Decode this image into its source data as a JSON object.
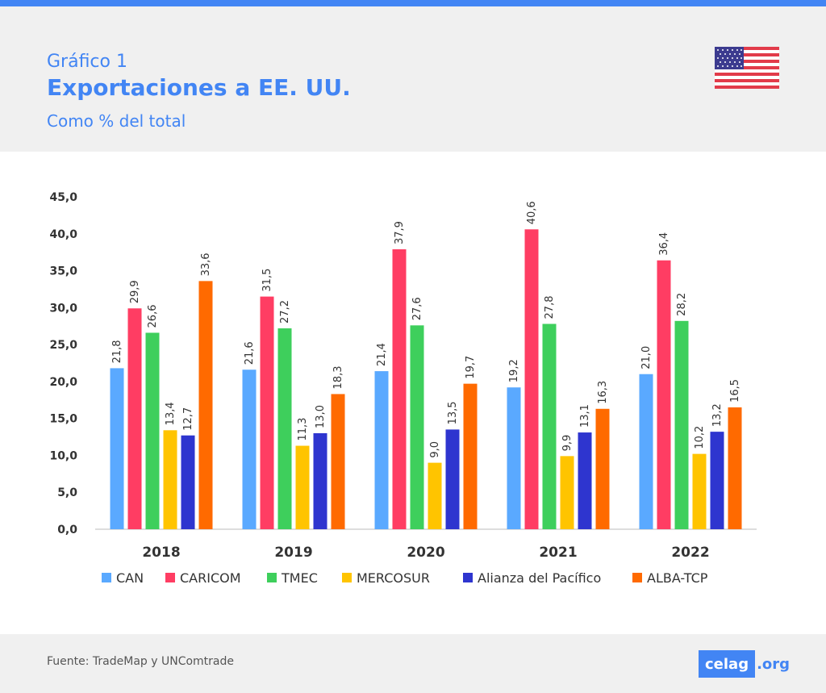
{
  "header": {
    "label": "Gráfico 1",
    "title": "Exportaciones a EE. UU.",
    "subtitle": "Como % del total"
  },
  "flag_icon": "us-flag-icon",
  "footer": {
    "source": "Fuente: TradeMap y UNComtrade",
    "brand_main": "celag",
    "brand_ext": ".org"
  },
  "chart_data": {
    "type": "bar",
    "title": "Exportaciones a EE. UU.",
    "categories": [
      "2018",
      "2019",
      "2020",
      "2021",
      "2022"
    ],
    "ylim": [
      0,
      45
    ],
    "yticks": [
      "0,0",
      "5,0",
      "10,0",
      "15,0",
      "20,0",
      "25,0",
      "30,0",
      "35,0",
      "40,0",
      "45,0"
    ],
    "grid": false,
    "legend_position": "bottom",
    "series": [
      {
        "name": "CAN",
        "color": "#5aa9ff",
        "values": [
          21.8,
          21.6,
          21.4,
          19.2,
          21.0
        ],
        "labels": [
          "21,8",
          "21,6",
          "21,4",
          "19,2",
          "21,0"
        ]
      },
      {
        "name": "CARICOM",
        "color": "#ff3d63",
        "values": [
          29.9,
          31.5,
          37.9,
          40.6,
          36.4
        ],
        "labels": [
          "29,9",
          "31,5",
          "37,9",
          "40,6",
          "36,4"
        ]
      },
      {
        "name": "TMEC",
        "color": "#3ecf5c",
        "values": [
          26.6,
          27.2,
          27.6,
          27.8,
          28.2
        ],
        "labels": [
          "26,6",
          "27,2",
          "27,6",
          "27,8",
          "28,2"
        ]
      },
      {
        "name": "MERCOSUR",
        "color": "#ffc400",
        "values": [
          13.4,
          11.3,
          9.0,
          9.9,
          10.2
        ],
        "labels": [
          "13,4",
          "11,3",
          "9,0",
          "9,9",
          "10,2"
        ]
      },
      {
        "name": "Alianza del Pacífico",
        "color": "#2e35cf",
        "values": [
          12.7,
          13.0,
          13.5,
          13.1,
          13.2
        ],
        "labels": [
          "12,7",
          "13,0",
          "13,5",
          "13,1",
          "13,2"
        ]
      },
      {
        "name": "ALBA-TCP",
        "color": "#ff6a00",
        "values": [
          33.6,
          18.3,
          19.7,
          16.3,
          16.5
        ],
        "labels": [
          "33,6",
          "18,3",
          "19,7",
          "16,3",
          "16,5"
        ]
      }
    ]
  }
}
